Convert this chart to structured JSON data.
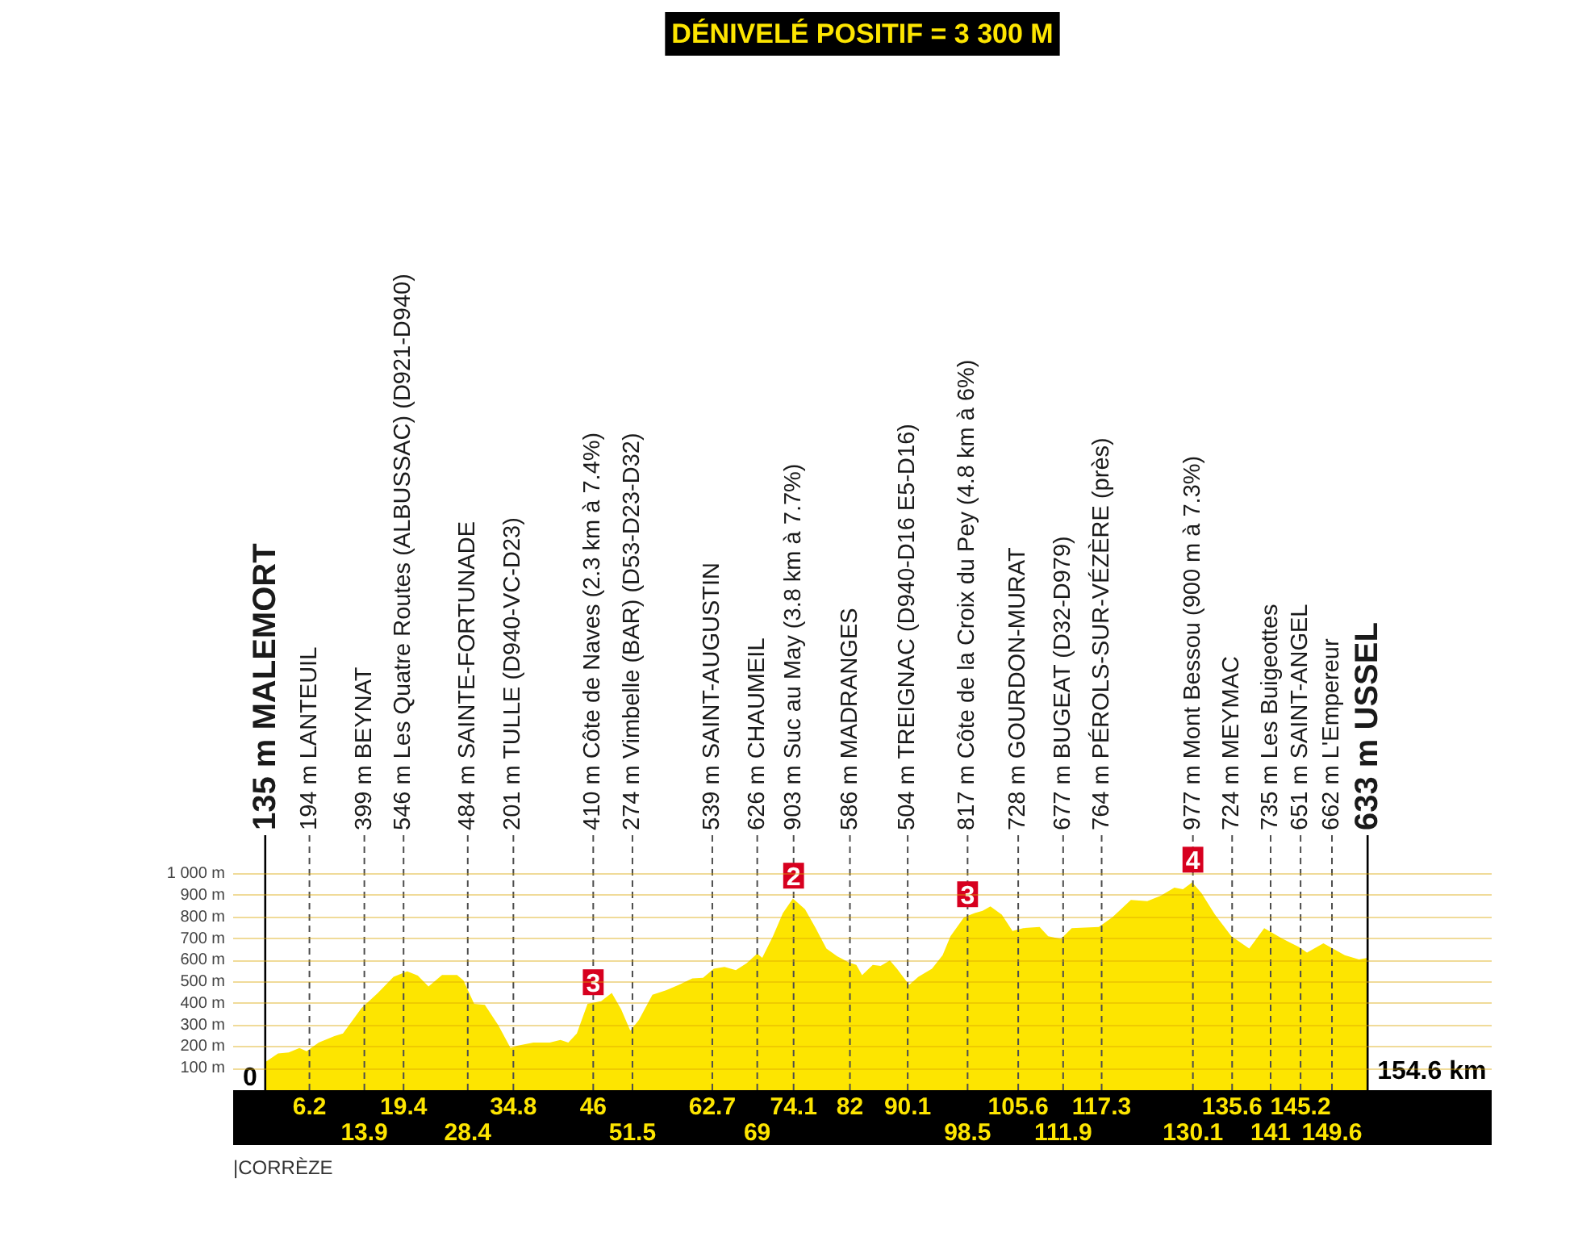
{
  "chart_data": {
    "type": "area",
    "title": "DÉNIVELÉ POSITIF = 3 300 M",
    "x": [
      0,
      1.8,
      3.3,
      4.8,
      5.8,
      7.5,
      9.7,
      10.9,
      13.5,
      15.8,
      18.0,
      19.9,
      21.4,
      22.9,
      24.8,
      26.9,
      27.8,
      29.3,
      30.8,
      32.7,
      34.4,
      35.3,
      37.6,
      39.9,
      41.4,
      42.5,
      43.7,
      45.2,
      47.1,
      48.6,
      49.9,
      51.2,
      52.4,
      54.3,
      56.2,
      58.0,
      59.9,
      61.4,
      62.9,
      64.4,
      66.0,
      67.5,
      69.0,
      69.7,
      71.2,
      72.6,
      74.0,
      75.7,
      77.2,
      78.7,
      80.2,
      81.8,
      82.9,
      83.7,
      85.2,
      86.3,
      87.6,
      88.6,
      90.3,
      91.6,
      93.5,
      95.0,
      96.1,
      98.0,
      99.5,
      100.6,
      101.7,
      103.3,
      104.8,
      106.3,
      108.6,
      109.8,
      111.6,
      113.1,
      116.9,
      118.8,
      121.4,
      123.7,
      125.6,
      127.5,
      128.7,
      130.0,
      131.3,
      133.2,
      135.5,
      138.0,
      140.1,
      142.7,
      145.0,
      146.1,
      148.4,
      151.4,
      153.4,
      154.6
    ],
    "values": [
      130,
      170,
      175,
      195,
      180,
      220,
      250,
      262,
      380,
      450,
      525,
      550,
      530,
      480,
      533,
      533,
      508,
      400,
      395,
      300,
      195,
      205,
      220,
      220,
      232,
      220,
      262,
      400,
      412,
      450,
      375,
      275,
      325,
      442,
      462,
      487,
      517,
      520,
      562,
      570,
      555,
      587,
      632,
      612,
      712,
      820,
      887,
      837,
      750,
      655,
      620,
      592,
      580,
      532,
      580,
      575,
      600,
      562,
      487,
      525,
      562,
      625,
      712,
      800,
      820,
      830,
      850,
      812,
      737,
      750,
      755,
      712,
      700,
      750,
      755,
      800,
      880,
      875,
      900,
      937,
      930,
      962,
      912,
      812,
      712,
      655,
      750,
      700,
      662,
      637,
      680,
      625,
      605,
      612
    ],
    "color": "#fde500",
    "xlim": [
      -4.5,
      172
    ],
    "xticks": [
      6.2,
      19.4,
      34.8,
      46,
      62.7,
      74.1,
      82,
      90.1,
      105.6,
      117.3,
      135.6,
      145.2
    ],
    "x2lim": [
      -4.5,
      172
    ],
    "x2ticks": [
      13.9,
      28.4,
      51.5,
      69,
      98.5,
      111.9,
      130.1,
      141,
      149.6
    ],
    "ylim": [
      0,
      1180
    ],
    "yticks": [
      {
        "value": 100,
        "label": "100 m"
      },
      {
        "value": 200,
        "label": "200 m"
      },
      {
        "value": 300,
        "label": "300 m"
      },
      {
        "value": 400,
        "label": "400 m"
      },
      {
        "value": 500,
        "label": "500 m"
      },
      {
        "value": 600,
        "label": "600 m"
      },
      {
        "value": 700,
        "label": "700 m"
      },
      {
        "value": 800,
        "label": "800 m"
      },
      {
        "value": 900,
        "label": "900 m"
      },
      {
        "value": 1000,
        "label": "1 000 m"
      }
    ],
    "grid": "y",
    "ref_lines": [
      {
        "axis": "x",
        "value": 0,
        "label": "135 m MALEMORT",
        "line_style": "solid",
        "color": "#000000"
      },
      {
        "axis": "x",
        "value": 6.2,
        "label": "194 m LANTEUIL",
        "line_style": "dashed",
        "color": "#4d4d4d"
      },
      {
        "axis": "x",
        "value": 13.9,
        "label": "399 m BEYNAT",
        "line_style": "dashed",
        "color": "#4d4d4d"
      },
      {
        "axis": "x",
        "value": 19.4,
        "label": "546 m Les Quatre Routes (ALBUSSAC) (D921-D940)",
        "line_style": "dashed",
        "color": "#4d4d4d"
      },
      {
        "axis": "x",
        "value": 28.4,
        "label": "484 m SAINTE-FORTUNADE",
        "line_style": "dashed",
        "color": "#4d4d4d"
      },
      {
        "axis": "x",
        "value": 34.8,
        "label": "201 m TULLE (D940-VC-D23)",
        "line_style": "dashed",
        "color": "#4d4d4d"
      },
      {
        "axis": "x",
        "value": 46,
        "label": "410 m Côte de Naves (2.3 km à 7.4%)",
        "line_style": "dashed",
        "color": "#4d4d4d"
      },
      {
        "axis": "x",
        "value": 51.5,
        "label": "274 m Vimbelle (BAR) (D53-D23-D32)",
        "line_style": "dashed",
        "color": "#4d4d4d"
      },
      {
        "axis": "x",
        "value": 62.7,
        "label": "539 m SAINT-AUGUSTIN",
        "line_style": "dashed",
        "color": "#4d4d4d"
      },
      {
        "axis": "x",
        "value": 69,
        "label": "626 m CHAUMEIL",
        "line_style": "dashed",
        "color": "#4d4d4d"
      },
      {
        "axis": "x",
        "value": 74.1,
        "label": "903 m Suc au May (3.8 km à 7.7%)",
        "line_style": "dashed",
        "color": "#4d4d4d"
      },
      {
        "axis": "x",
        "value": 82,
        "label": "586 m MADRANGES",
        "line_style": "dashed",
        "color": "#4d4d4d"
      },
      {
        "axis": "x",
        "value": 90.1,
        "label": "504 m TREIGNAC (D940-D16 E5-D16)",
        "line_style": "dashed",
        "color": "#4d4d4d"
      },
      {
        "axis": "x",
        "value": 98.5,
        "label": "817 m Côte de la Croix du Pey (4.8 km à 6%)",
        "line_style": "dashed",
        "color": "#4d4d4d"
      },
      {
        "axis": "x",
        "value": 105.6,
        "label": "728 m GOURDON-MURAT",
        "line_style": "dashed",
        "color": "#4d4d4d"
      },
      {
        "axis": "x",
        "value": 111.9,
        "label": "677 m BUGEAT (D32-D979)",
        "line_style": "dashed",
        "color": "#4d4d4d"
      },
      {
        "axis": "x",
        "value": 117.3,
        "label": "764 m PÉROLS-SUR-VÉZÈRE (près)",
        "line_style": "dashed",
        "color": "#4d4d4d"
      },
      {
        "axis": "x",
        "value": 130.1,
        "label": "977 m Mont Bessou (900 m à 7.3%)",
        "line_style": "dashed",
        "color": "#4d4d4d"
      },
      {
        "axis": "x",
        "value": 135.6,
        "label": "724 m MEYMAC",
        "line_style": "dashed",
        "color": "#4d4d4d"
      },
      {
        "axis": "x",
        "value": 141,
        "label": "735 m Les Buigeottes",
        "line_style": "dashed",
        "color": "#4d4d4d"
      },
      {
        "axis": "x",
        "value": 145.2,
        "label": "651 m SAINT-ANGEL",
        "line_style": "dashed",
        "color": "#4d4d4d"
      },
      {
        "axis": "x",
        "value": 149.6,
        "label": "662 m L'Empereur",
        "line_style": "dashed",
        "color": "#4d4d4d"
      },
      {
        "axis": "x",
        "value": 154.6,
        "label": "633 m USSEL",
        "line_style": "solid",
        "color": "#000000"
      }
    ],
    "annotations": [
      {
        "text": "0",
        "x": 0,
        "y": 0
      },
      {
        "text": "154.6 km",
        "x": 154.6,
        "y": 0
      },
      {
        "text": "3",
        "x": 46,
        "y": 410
      },
      {
        "text": "2",
        "x": 74.1,
        "y": 903
      },
      {
        "text": "3",
        "x": 98.5,
        "y": 817
      },
      {
        "text": "4",
        "x": 130.1,
        "y": 977
      },
      "|CORRÈZE"
    ]
  }
}
